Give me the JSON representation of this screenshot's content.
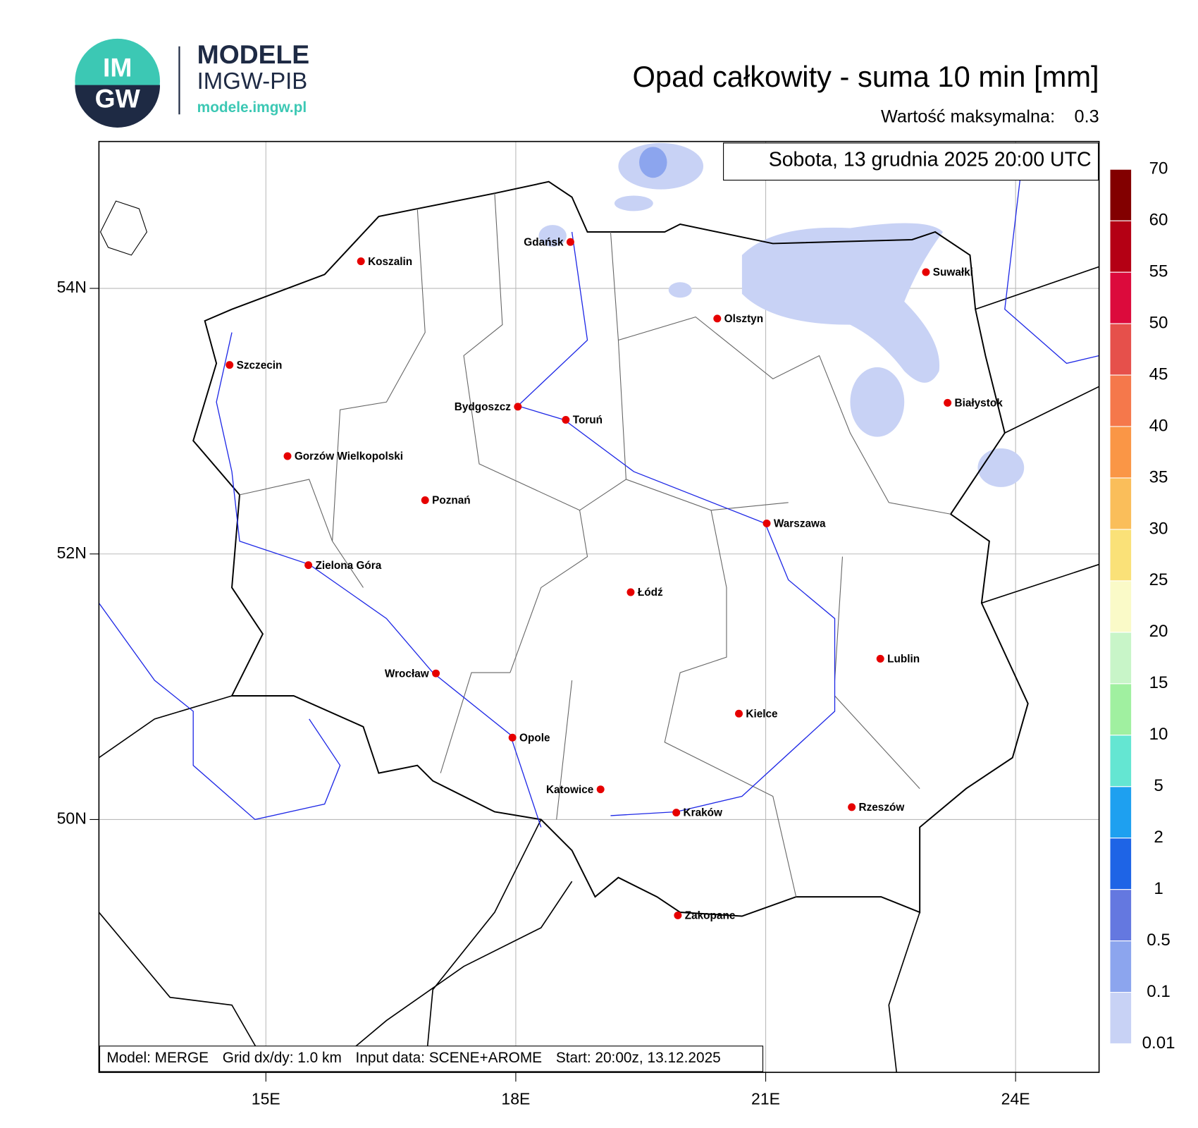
{
  "logo": {
    "mark_top": "IM",
    "mark_bottom": "GW",
    "name": "MODELE",
    "org": "IMGW-PIB",
    "url": "modele.imgw.pl"
  },
  "title": "Opad całkowity - suma 10 min [mm]",
  "max_label": "Wartość maksymalna:",
  "max_value": 0.3,
  "date": "Sobota, 13 grudnia 2025 20:00 UTC",
  "lon_ticks": [
    {
      "value": 15,
      "label": "15E"
    },
    {
      "value": 18,
      "label": "18E"
    },
    {
      "value": 21,
      "label": "21E"
    },
    {
      "value": 24,
      "label": "24E"
    }
  ],
  "lat_ticks": [
    {
      "value": 54,
      "label": "54N"
    },
    {
      "value": 52,
      "label": "52N"
    },
    {
      "value": 50,
      "label": "50N"
    }
  ],
  "cities": [
    "Gdańsk",
    "Koszalin",
    "Suwałki",
    "Olsztyn",
    "Szczecin",
    "Bydgoszcz",
    "Toruń",
    "Białystok",
    "Gorzów Wielkopolski",
    "Poznań",
    "Warszawa",
    "Zielona Góra",
    "Łódź",
    "Lublin",
    "Wrocław",
    "Kielce",
    "Opole",
    "Katowice",
    "Kraków",
    "Rzeszów",
    "Zakopane"
  ],
  "colorbar": {
    "levels": [
      0.01,
      0.1,
      0.5,
      1,
      2,
      5,
      10,
      15,
      20,
      25,
      30,
      35,
      40,
      45,
      50,
      55,
      60,
      70
    ],
    "colors": [
      "#c8d2f5",
      "#8ca5ee",
      "#6478e0",
      "#1e64e6",
      "#1ea0f0",
      "#64e6d2",
      "#a0f0a0",
      "#c8f5c8",
      "#fafac8",
      "#fae178",
      "#fabe5a",
      "#fa9646",
      "#f5784b",
      "#e6504b",
      "#dc0a3c",
      "#b40014",
      "#820000"
    ]
  },
  "footer": [
    "Model: MERGE",
    "Grid dx/dy: 1.0 km",
    "Input data: SCENE+AROME",
    "Start: 20:00z, 13.12.2025"
  ]
}
